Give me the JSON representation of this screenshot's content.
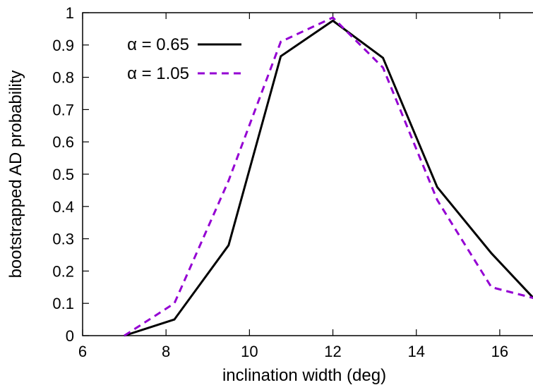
{
  "chart_data": {
    "type": "line",
    "title": "",
    "xlabel": "inclination width (deg)",
    "ylabel": "bootstrapped AD probability",
    "xlim": [
      6,
      17
    ],
    "ylim": [
      0,
      1
    ],
    "x_ticks": [
      6,
      8,
      10,
      12,
      14,
      16
    ],
    "y_ticks": [
      0,
      0.1,
      0.2,
      0.3,
      0.4,
      0.5,
      0.6,
      0.7,
      0.8,
      0.9,
      1
    ],
    "grid": false,
    "legend_position": "top-left",
    "series": [
      {
        "name": "α = 0.65",
        "color": "#000000",
        "dash": "solid",
        "x": [
          7.0,
          8.2,
          9.5,
          10.75,
          12.0,
          13.2,
          14.5,
          15.8,
          17.0
        ],
        "y": [
          0.0,
          0.05,
          0.28,
          0.865,
          0.975,
          0.86,
          0.46,
          0.255,
          0.09
        ]
      },
      {
        "name": "α = 1.05",
        "color": "#9400d3",
        "dash": "dashed",
        "x": [
          7.0,
          8.2,
          9.5,
          10.75,
          12.0,
          13.2,
          14.5,
          15.8,
          17.0
        ],
        "y": [
          0.0,
          0.1,
          0.48,
          0.91,
          0.985,
          0.83,
          0.42,
          0.15,
          0.11
        ]
      }
    ]
  }
}
